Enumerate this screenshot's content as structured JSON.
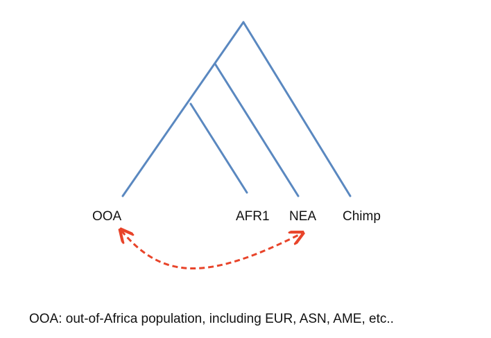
{
  "tree": {
    "branch_color": "#5a88c0",
    "leaves": [
      {
        "id": "ooa",
        "label": "OOA"
      },
      {
        "id": "afr1",
        "label": "AFR1"
      },
      {
        "id": "nea",
        "label": "NEA"
      },
      {
        "id": "chimp",
        "label": "Chimp"
      }
    ]
  },
  "gene_flow": {
    "from": "NEA",
    "to": "OOA",
    "direction": "bidirectional",
    "style": "dashed",
    "color": "#e8442a"
  },
  "footnote": "OOA: out-of-Africa population, including EUR, ASN, AME, etc.."
}
